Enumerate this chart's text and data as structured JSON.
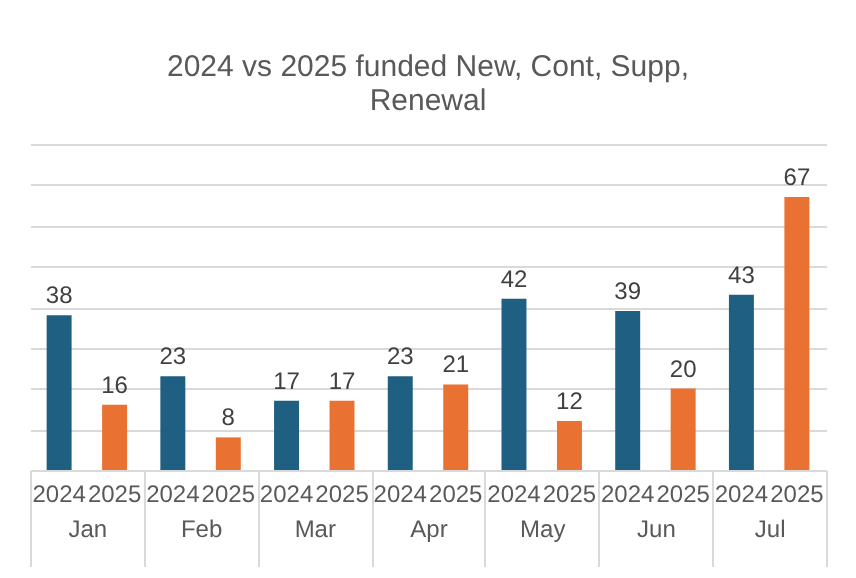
{
  "chart_data": {
    "type": "bar",
    "title": "2024 vs 2025 funded New, Cont, Supp, Renewal",
    "categories": [
      "Jan",
      "Feb",
      "Mar",
      "Apr",
      "May",
      "Jun",
      "Jul"
    ],
    "series": [
      {
        "name": "2024",
        "color": "#1f5f82",
        "values": [
          38,
          23,
          17,
          23,
          42,
          39,
          43
        ]
      },
      {
        "name": "2025",
        "color": "#e97132",
        "values": [
          16,
          8,
          17,
          21,
          12,
          20,
          67
        ]
      }
    ],
    "ylim": [
      0,
      80
    ],
    "yticks": [
      {
        "value": 0,
        "label": null
      },
      {
        "value": 10,
        "label": null
      },
      {
        "value": 20,
        "label": null
      },
      {
        "value": 30,
        "label": null
      },
      {
        "value": 40,
        "label": null
      },
      {
        "value": 50,
        "label": null
      },
      {
        "value": 60,
        "label": null
      },
      {
        "value": 70,
        "label": null
      },
      {
        "value": 80,
        "label": null
      }
    ],
    "grid": "y",
    "data_labels": true,
    "legend": false,
    "tick_labels": "x"
  }
}
